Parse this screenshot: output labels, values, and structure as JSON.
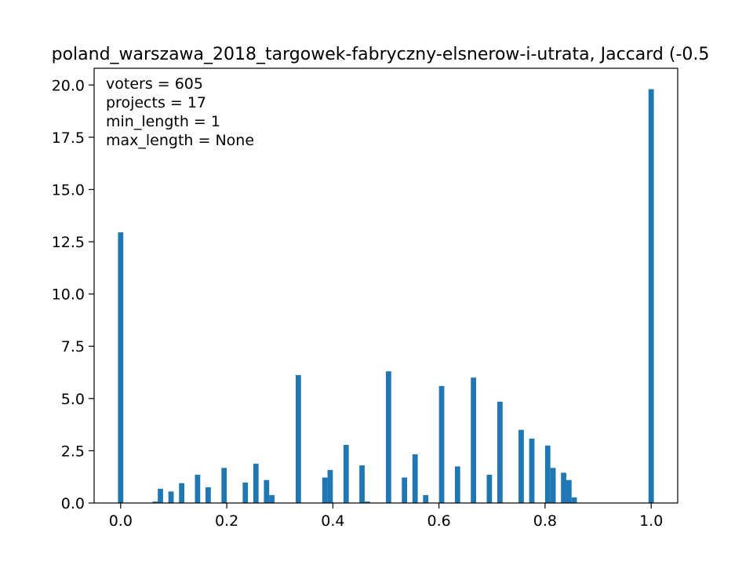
{
  "chart_data": {
    "type": "bar",
    "title": "poland_warszawa_2018_targowek-fabryczny-elsnerow-i-utrata, Jaccard (-0.5",
    "xlabel": "",
    "ylabel": "",
    "xlim": [
      -0.05,
      1.05
    ],
    "ylim": [
      0,
      20.8
    ],
    "xticks": [
      0.0,
      0.2,
      0.4,
      0.6,
      0.8,
      1.0
    ],
    "xtick_labels": [
      "0.0",
      "0.2",
      "0.4",
      "0.6",
      "0.8",
      "1.0"
    ],
    "yticks": [
      0.0,
      2.5,
      5.0,
      7.5,
      10.0,
      12.5,
      15.0,
      17.5,
      20.0
    ],
    "ytick_labels": [
      "0.0",
      "2.5",
      "5.0",
      "7.5",
      "10.0",
      "12.5",
      "15.0",
      "17.5",
      "20.0"
    ],
    "annotations": [
      "voters = 605",
      "projects = 17",
      "min_length = 1",
      "max_length = None"
    ],
    "bar_width": 0.01,
    "color": "#1f77b4",
    "grid": false,
    "bars": [
      {
        "x": 0.0,
        "value": 12.95
      },
      {
        "x": 0.065,
        "value": 0.07
      },
      {
        "x": 0.075,
        "value": 0.68
      },
      {
        "x": 0.095,
        "value": 0.55
      },
      {
        "x": 0.115,
        "value": 0.95
      },
      {
        "x": 0.145,
        "value": 1.35
      },
      {
        "x": 0.165,
        "value": 0.75
      },
      {
        "x": 0.195,
        "value": 1.68
      },
      {
        "x": 0.235,
        "value": 0.98
      },
      {
        "x": 0.255,
        "value": 1.88
      },
      {
        "x": 0.275,
        "value": 1.1
      },
      {
        "x": 0.285,
        "value": 0.38
      },
      {
        "x": 0.335,
        "value": 6.12
      },
      {
        "x": 0.385,
        "value": 1.22
      },
      {
        "x": 0.395,
        "value": 1.58
      },
      {
        "x": 0.425,
        "value": 2.78
      },
      {
        "x": 0.455,
        "value": 1.8
      },
      {
        "x": 0.465,
        "value": 0.07
      },
      {
        "x": 0.505,
        "value": 6.3
      },
      {
        "x": 0.535,
        "value": 1.22
      },
      {
        "x": 0.555,
        "value": 2.33
      },
      {
        "x": 0.575,
        "value": 0.38
      },
      {
        "x": 0.605,
        "value": 5.6
      },
      {
        "x": 0.635,
        "value": 1.75
      },
      {
        "x": 0.665,
        "value": 6.0
      },
      {
        "x": 0.695,
        "value": 1.35
      },
      {
        "x": 0.715,
        "value": 4.85
      },
      {
        "x": 0.755,
        "value": 3.5
      },
      {
        "x": 0.775,
        "value": 3.08
      },
      {
        "x": 0.805,
        "value": 2.75
      },
      {
        "x": 0.815,
        "value": 1.68
      },
      {
        "x": 0.835,
        "value": 1.45
      },
      {
        "x": 0.845,
        "value": 1.1
      },
      {
        "x": 0.855,
        "value": 0.27
      },
      {
        "x": 1.0,
        "value": 19.8
      }
    ]
  }
}
